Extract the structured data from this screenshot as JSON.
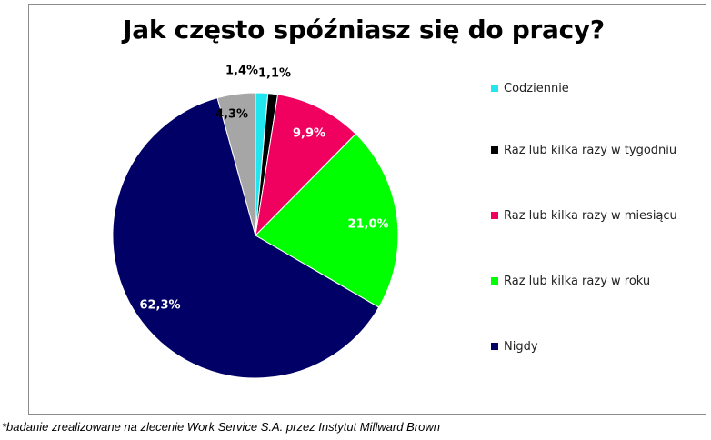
{
  "chart_data": {
    "type": "pie",
    "title": "Jak często spóźniasz się do pracy?",
    "categories": [
      "Codziennie",
      "Raz lub kilka razy w tygodniu",
      "Raz lub kilka razy w miesiącu",
      "Raz lub kilka razy w roku",
      "Nigdy",
      ""
    ],
    "values": [
      1.4,
      1.1,
      9.9,
      21.0,
      62.3,
      4.3
    ],
    "value_labels": [
      "1,4%",
      "1,1%",
      "9,9%",
      "21,0%",
      "62,3%",
      "4,3%"
    ],
    "colors": [
      "#21e6f0",
      "#000000",
      "#f0005f",
      "#00ff00",
      "#000066",
      "#a6a6a6"
    ],
    "label_colors": [
      "#000000",
      "#000000",
      "#ffffff",
      "#ffffff",
      "#ffffff",
      "#000000"
    ],
    "legend_position": "right"
  },
  "legend": [
    {
      "label": "Codziennie",
      "color": "#21e6f0"
    },
    {
      "label": "Raz lub kilka razy w tygodniu",
      "color": "#000000"
    },
    {
      "label": "Raz lub kilka razy w miesiącu",
      "color": "#f0005f"
    },
    {
      "label": "Raz lub kilka razy w roku",
      "color": "#00ff00"
    },
    {
      "label": "Nigdy",
      "color": "#000066"
    }
  ],
  "footnote": "*badanie zrealizowane na zlecenie Work Service S.A. przez Instytut Millward Brown"
}
